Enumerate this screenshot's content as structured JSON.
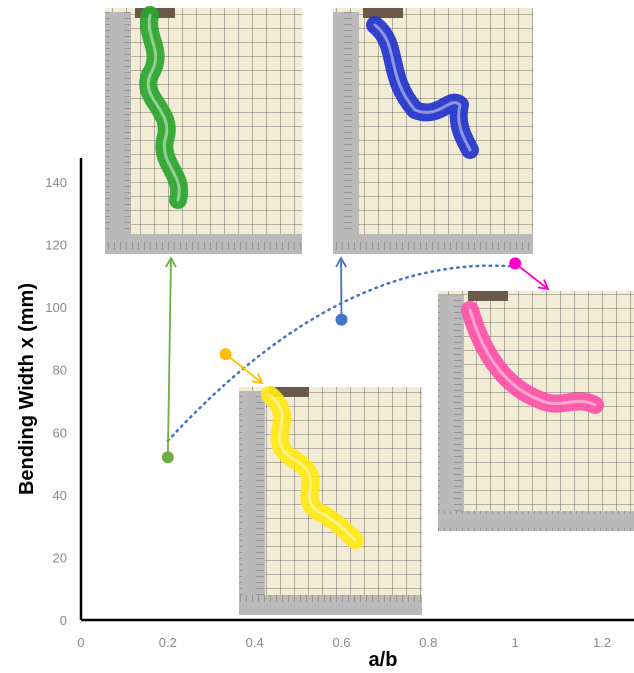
{
  "chart_data": {
    "type": "scatter",
    "title": "",
    "xlabel": "a/b",
    "ylabel": "Bending Width x (mm)",
    "xlim": [
      0,
      1.2
    ],
    "ylim": [
      0,
      140
    ],
    "x_ticks": [
      "0",
      "0.2",
      "0.4",
      "0.6",
      "0.8",
      "1",
      "1.2"
    ],
    "y_ticks": [
      "0",
      "20",
      "40",
      "60",
      "80",
      "100",
      "120",
      "140"
    ],
    "grid": false,
    "legend": "none",
    "points": [
      {
        "x": 0.2,
        "y": 52,
        "color": "#70ad47"
      },
      {
        "x": 0.333,
        "y": 85,
        "color": "#ffc000"
      },
      {
        "x": 0.6,
        "y": 96,
        "color": "#4472c4"
      },
      {
        "x": 1.0,
        "y": 114,
        "color": "#ff00cc"
      }
    ],
    "trendline": {
      "style": "dotted",
      "color": "#4472c4",
      "type": "polynomial"
    },
    "inset_photos": [
      {
        "name": "green-actuator-photo",
        "color": "#2aa52e",
        "point_index": 0
      },
      {
        "name": "yellow-actuator-photo",
        "color": "#ffe812",
        "point_index": 1
      },
      {
        "name": "blue-actuator-photo",
        "color": "#2233cc",
        "point_index": 2
      },
      {
        "name": "pink-actuator-photo",
        "color": "#ff4fa8",
        "point_index": 3
      }
    ]
  }
}
